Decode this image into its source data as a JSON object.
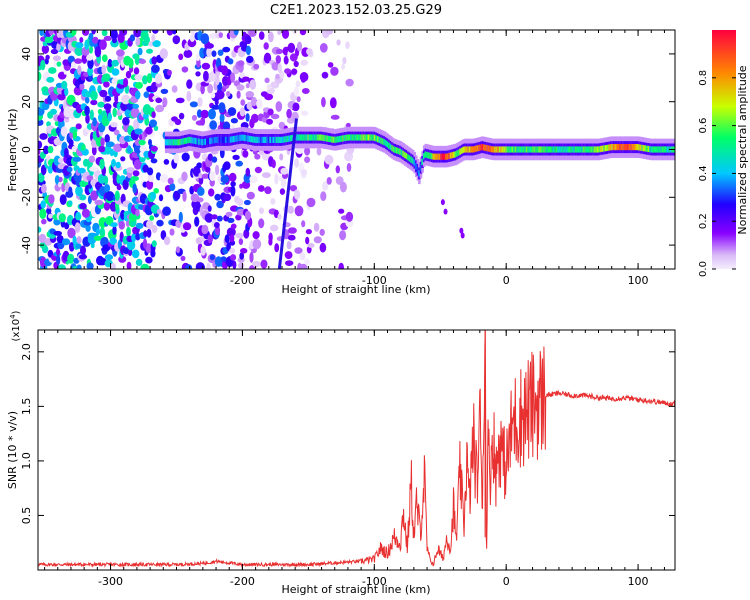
{
  "title": "C2E1.2023.152.03.25.G29",
  "chart_data": [
    {
      "type": "heatmap",
      "title": "C2E1.2023.152.03.25.G29",
      "xlabel": "Height of straight line (km)",
      "ylabel": "Frequency (Hz)",
      "xlim": [
        -355,
        128
      ],
      "ylim": [
        -50,
        50
      ],
      "x_ticks": [
        -300,
        -200,
        -100,
        0,
        100
      ],
      "x_tick_labels": [
        "-300",
        "-200",
        "-100",
        "0",
        "100"
      ],
      "y_ticks": [
        -40,
        -20,
        0,
        20,
        40
      ],
      "y_tick_labels": [
        "-40",
        "-20",
        "0",
        "20",
        "40"
      ],
      "colorbar": {
        "label": "Normalized spectral amplitude",
        "range": [
          0,
          1
        ],
        "ticks": [
          0.0,
          0.2,
          0.4,
          0.6,
          0.8
        ],
        "tick_labels": [
          "0.0",
          "0.2",
          "0.4",
          "0.6",
          "0.8"
        ],
        "colormap": [
          "#f5eefc",
          "#8800ff",
          "#2200ff",
          "#00c8ff",
          "#00ff66",
          "#c8ff00",
          "#ff8800",
          "#ff0040"
        ]
      },
      "ridge": [
        [
          -258,
          3,
          0.45
        ],
        [
          -248,
          3,
          0.55
        ],
        [
          -240,
          4,
          0.45
        ],
        [
          -230,
          3,
          0.35
        ],
        [
          -220,
          4,
          0.3
        ],
        [
          -210,
          4,
          0.35
        ],
        [
          -200,
          5,
          0.4
        ],
        [
          -190,
          4,
          0.4
        ],
        [
          -180,
          4,
          0.35
        ],
        [
          -170,
          4,
          0.45
        ],
        [
          -160,
          5,
          0.45
        ],
        [
          -150,
          5,
          0.55
        ],
        [
          -140,
          5,
          0.55
        ],
        [
          -130,
          4,
          0.55
        ],
        [
          -120,
          5,
          0.55
        ],
        [
          -110,
          5,
          0.6
        ],
        [
          -100,
          5,
          0.6
        ],
        [
          -92,
          3,
          0.5
        ],
        [
          -85,
          0,
          0.55
        ],
        [
          -80,
          -1,
          0.55
        ],
        [
          -75,
          -3,
          0.6
        ],
        [
          -70,
          -5,
          0.45
        ],
        [
          -66,
          -10,
          0.35
        ],
        [
          -62,
          -2,
          0.5
        ],
        [
          -55,
          -3,
          0.7
        ],
        [
          -50,
          -3,
          0.9
        ],
        [
          -45,
          -3,
          0.95
        ],
        [
          -38,
          -2,
          0.55
        ],
        [
          -32,
          0,
          0.7
        ],
        [
          -25,
          0,
          0.8
        ],
        [
          -18,
          1,
          0.9
        ],
        [
          -10,
          0,
          0.85
        ],
        [
          0,
          0,
          0.6
        ],
        [
          10,
          0,
          0.55
        ],
        [
          20,
          0,
          0.55
        ],
        [
          30,
          0,
          0.55
        ],
        [
          40,
          0,
          0.5
        ],
        [
          50,
          0,
          0.5
        ],
        [
          60,
          0,
          0.55
        ],
        [
          70,
          0,
          0.6
        ],
        [
          80,
          1,
          0.75
        ],
        [
          90,
          1,
          0.9
        ],
        [
          100,
          1,
          0.75
        ],
        [
          110,
          0,
          0.55
        ],
        [
          120,
          0,
          0.5
        ],
        [
          128,
          0,
          0.5
        ]
      ],
      "sweep_line": {
        "from": [
          -172,
          -50
        ],
        "to": [
          -159,
          13
        ]
      }
    },
    {
      "type": "line",
      "xlabel": "Height of straight line (km)",
      "ylabel": "SNR (10 * v/v)",
      "y_scale_label": "(x10",
      "y_scale_exp": "4",
      "y_scale_close": ")",
      "xlim": [
        -355,
        128
      ],
      "ylim": [
        0,
        2.2
      ],
      "x_ticks": [
        -300,
        -200,
        -100,
        0,
        100
      ],
      "x_tick_labels": [
        "-300",
        "-200",
        "-100",
        "0",
        "100"
      ],
      "y_ticks": [
        0.5,
        1.0,
        1.5,
        2.0
      ],
      "y_tick_labels": [
        "0.5",
        "1.0",
        "1.5",
        "2.0"
      ],
      "series": [
        {
          "color": "#e83030",
          "x": [
            -355,
            -300,
            -250,
            -230,
            -220,
            -200,
            -150,
            -110,
            -100,
            -95,
            -90,
            -85,
            -80,
            -78,
            -75,
            -72,
            -70,
            -68,
            -65,
            -62,
            -60,
            -58,
            -55,
            -52,
            -50,
            -48,
            -45,
            -42,
            -40,
            -38,
            -35,
            -32,
            -30,
            -28,
            -25,
            -22,
            -20,
            -18,
            -16,
            -15,
            -14,
            -12,
            -10,
            -8,
            -5,
            -2,
            0,
            5,
            10,
            15,
            20,
            25,
            30,
            40,
            50,
            60,
            70,
            80,
            90,
            100,
            110,
            120,
            128
          ],
          "y": [
            0.05,
            0.05,
            0.05,
            0.06,
            0.08,
            0.05,
            0.05,
            0.08,
            0.1,
            0.2,
            0.15,
            0.3,
            0.25,
            0.55,
            0.2,
            0.8,
            0.3,
            0.6,
            0.35,
            0.85,
            0.2,
            0.1,
            0.05,
            0.2,
            0.15,
            0.1,
            0.3,
            0.2,
            0.6,
            0.25,
            0.9,
            0.4,
            1.05,
            0.6,
            1.2,
            0.8,
            1.4,
            0.7,
            2.2,
            0.1,
            1.1,
            0.9,
            1.3,
            0.85,
            1.2,
            1.0,
            0.95,
            1.35,
            1.4,
            1.45,
            1.5,
            1.55,
            1.6,
            1.62,
            1.6,
            1.6,
            1.58,
            1.57,
            1.58,
            1.56,
            1.55,
            1.53,
            1.52
          ]
        }
      ]
    }
  ]
}
